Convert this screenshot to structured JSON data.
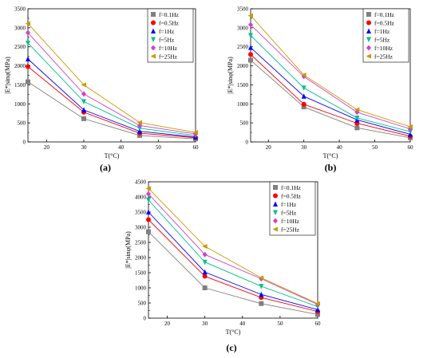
{
  "figure": {
    "series_colors": [
      "#808080",
      "#ff0000",
      "#0000ff",
      "#00c08a",
      "#cc44cc",
      "#cc9900"
    ],
    "series_markers": [
      "square",
      "circle",
      "triangle-up",
      "triangle-down",
      "diamond",
      "triangle-left"
    ]
  },
  "chart_data": [
    {
      "type": "line",
      "panel_label": "(a)",
      "xlabel": "T(°C)",
      "ylabel": "|E*|sinφ(MPa)",
      "x": [
        15,
        30,
        45,
        60
      ],
      "xlim": [
        15,
        60
      ],
      "ylim": [
        0,
        3500
      ],
      "xticks": [
        20,
        30,
        40,
        50,
        60
      ],
      "yticks": [
        0,
        500,
        1000,
        1500,
        2000,
        2500,
        3000,
        3500
      ],
      "legend_position": "top-right",
      "grid": false,
      "series": [
        {
          "name": "f=0.1Hz",
          "values": [
            1580,
            610,
            170,
            80
          ]
        },
        {
          "name": "f=0.5Hz",
          "values": [
            1980,
            780,
            230,
            110
          ]
        },
        {
          "name": "f=1Hz",
          "values": [
            2180,
            840,
            280,
            130
          ]
        },
        {
          "name": "f=5Hz",
          "values": [
            2600,
            1060,
            360,
            170
          ]
        },
        {
          "name": "f=10Hz",
          "values": [
            2870,
            1260,
            430,
            210
          ]
        },
        {
          "name": "f=25Hz",
          "values": [
            3110,
            1500,
            510,
            250
          ]
        }
      ]
    },
    {
      "type": "line",
      "panel_label": "(b)",
      "xlabel": "T(°C)",
      "ylabel": "|E*|sinφ(MPa)",
      "x": [
        15,
        30,
        45,
        60
      ],
      "xlim": [
        15,
        60
      ],
      "ylim": [
        0,
        3500
      ],
      "xticks": [
        20,
        30,
        40,
        50,
        60
      ],
      "yticks": [
        0,
        500,
        1000,
        1500,
        2000,
        2500,
        3000,
        3500
      ],
      "legend_position": "top-right",
      "grid": false,
      "series": [
        {
          "name": "f=0.1Hz",
          "values": [
            2150,
            920,
            370,
            110
          ]
        },
        {
          "name": "f=0.5Hz",
          "values": [
            2300,
            990,
            490,
            150
          ]
        },
        {
          "name": "f=1Hz",
          "values": [
            2480,
            1200,
            580,
            200
          ]
        },
        {
          "name": "f=5Hz",
          "values": [
            2800,
            1420,
            630,
            270
          ]
        },
        {
          "name": "f=10Hz",
          "values": [
            3080,
            1720,
            780,
            340
          ]
        },
        {
          "name": "f=25Hz",
          "values": [
            3320,
            1760,
            850,
            400
          ]
        }
      ]
    },
    {
      "type": "line",
      "panel_label": "(c)",
      "xlabel": "T(°C)",
      "ylabel": "|E*|sinφ(MPa)",
      "x": [
        15,
        30,
        45,
        60
      ],
      "xlim": [
        15,
        60
      ],
      "ylim": [
        0,
        4500
      ],
      "xticks": [
        20,
        30,
        40,
        50,
        60
      ],
      "yticks": [
        0,
        500,
        1000,
        1500,
        2000,
        2500,
        3000,
        3500,
        4000,
        4500
      ],
      "legend_position": "top-right",
      "grid": false,
      "series": [
        {
          "name": "f=0.1Hz",
          "values": [
            2850,
            1000,
            480,
            120
          ]
        },
        {
          "name": "f=0.5Hz",
          "values": [
            3250,
            1380,
            680,
            220
          ]
        },
        {
          "name": "f=1Hz",
          "values": [
            3500,
            1520,
            780,
            280
          ]
        },
        {
          "name": "f=5Hz",
          "values": [
            3900,
            1850,
            1050,
            380
          ]
        },
        {
          "name": "f=10Hz",
          "values": [
            4100,
            2100,
            1300,
            450
          ]
        },
        {
          "name": "f=25Hz",
          "values": [
            4280,
            2370,
            1330,
            480
          ]
        }
      ]
    }
  ]
}
